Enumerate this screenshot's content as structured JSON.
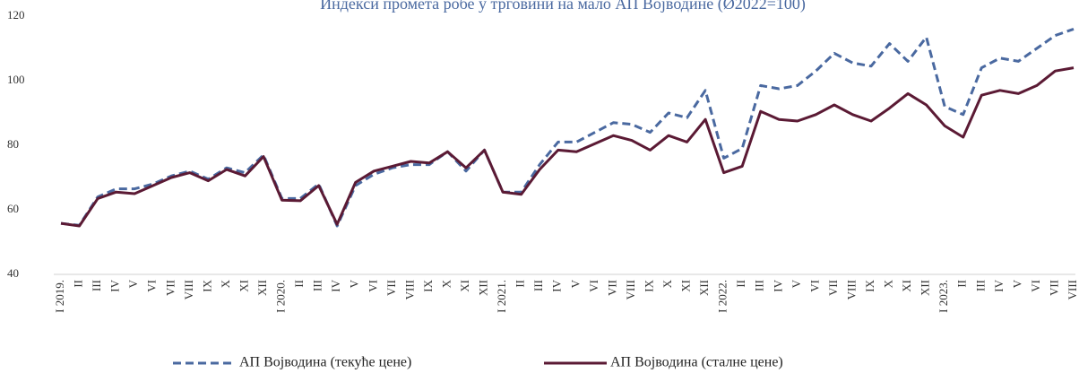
{
  "chart_data": {
    "type": "line",
    "title": "Индекси промета робе у трговини на мало АП Војводине (Ø2022=100)",
    "categories": [
      "I 2019.",
      "II",
      "III",
      "IV",
      "V",
      "VI",
      "VII",
      "VIII",
      "IX",
      "X",
      "XI",
      "XII",
      "I 2020.",
      "II",
      "III",
      "IV",
      "V",
      "VI",
      "VII",
      "VIII",
      "IX",
      "X",
      "XI",
      "XII",
      "I 2021.",
      "II",
      "III",
      "IV",
      "V",
      "VI",
      "VII",
      "VIII",
      "IX",
      "X",
      "XI",
      "XII",
      "I 2022.",
      "II",
      "III",
      "IV",
      "V",
      "VI",
      "VII",
      "VIII",
      "IX",
      "X",
      "XI",
      "XII",
      "I 2023.",
      "II",
      "III",
      "IV",
      "V",
      "VI",
      "VII",
      "VIII"
    ],
    "series": [
      {
        "name": "АП Војводина (текуће цене)",
        "color": "#4a69a0",
        "dashed": true,
        "values": [
          55.8,
          55.2,
          64,
          66.5,
          66.5,
          68,
          70.5,
          72,
          69.5,
          73,
          71.5,
          77,
          63.5,
          63.5,
          68,
          55,
          67.5,
          71,
          73,
          74,
          74,
          78,
          72,
          78.5,
          65.5,
          65.5,
          74,
          81,
          81,
          84,
          87,
          86.5,
          84,
          90,
          88.5,
          97,
          76,
          79,
          98.5,
          97.5,
          98.5,
          103,
          108.5,
          105.5,
          104.5,
          111.5,
          106,
          113.5,
          92,
          89.5,
          104,
          107,
          106,
          110,
          114,
          116
        ]
      },
      {
        "name": "АП Војводина (сталне цене)",
        "color": "#5b1a34",
        "dashed": false,
        "values": [
          55.8,
          55,
          63.5,
          65.5,
          65,
          67.5,
          70,
          71.5,
          69,
          72.5,
          70.5,
          76.5,
          63,
          62.8,
          67.5,
          55.5,
          68.5,
          72,
          73.5,
          75,
          74.5,
          78,
          73,
          78.5,
          65.5,
          64.8,
          72.5,
          78.5,
          78,
          80.5,
          83,
          81.5,
          78.5,
          83,
          81,
          88,
          71.5,
          73.5,
          90.5,
          88,
          87.5,
          89.5,
          92.5,
          89.5,
          87.5,
          91.5,
          96,
          92.5,
          86,
          82.5,
          95.5,
          97,
          96,
          98.5,
          103,
          104
        ]
      }
    ],
    "ylim": [
      40,
      120
    ],
    "yticks": [
      40,
      60,
      80,
      100,
      120
    ],
    "grid": false
  }
}
